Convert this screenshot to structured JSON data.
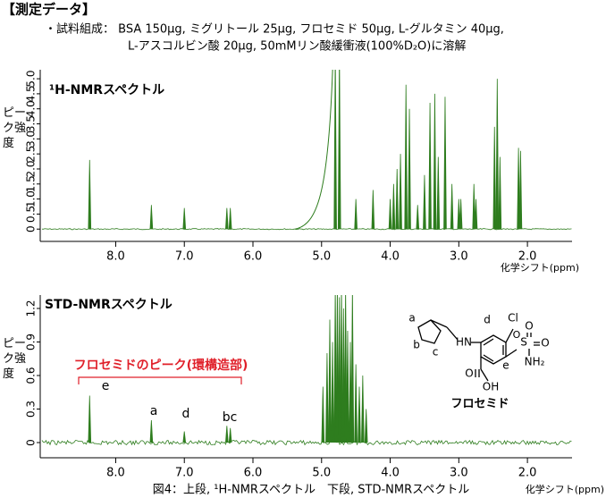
{
  "header": {
    "title": "【測定データ】",
    "lines": [
      "・試料組成： BSA 150μg, ミグリトール 25μg, フロセミド 50μg, L-グルタミン 40μg,",
      "L-アスコルビン酸 20μg,  50mMリン酸緩衝液(100%D₂O)に溶解"
    ]
  },
  "chart_data": [
    {
      "type": "spectrum",
      "title": "¹H-NMRスペクトル",
      "xlabel": "化学シフト(ppm)",
      "ylabel": "ピーク強度",
      "color": "#2e7d1e",
      "xlim": [
        9.1,
        1.35
      ],
      "ylim": [
        -0.35,
        5.3
      ],
      "xticks": [
        {
          "value": 8,
          "label": "8.0"
        },
        {
          "value": 7,
          "label": "7.0"
        },
        {
          "value": 6,
          "label": "6.0"
        },
        {
          "value": 5,
          "label": "5.0"
        },
        {
          "value": 4,
          "label": "4.0"
        },
        {
          "value": 3,
          "label": "3.0"
        },
        {
          "value": 2,
          "label": "2.0"
        }
      ],
      "yticks": [
        0,
        0.5,
        {
          "value": 1,
          "label": "1.0"
        },
        1.5,
        {
          "value": 2,
          "label": "2.0"
        },
        2.5,
        {
          "value": 3,
          "label": "3.0"
        },
        3.5,
        {
          "value": 4,
          "label": "4.0"
        },
        4.5,
        {
          "value": 5,
          "label": "5.0"
        }
      ],
      "x": [
        8.38,
        7.48,
        7.0,
        6.38,
        6.33,
        4.8,
        4.74,
        4.5,
        4.25,
        4.0,
        3.95,
        3.9,
        3.85,
        3.77,
        3.72,
        3.6,
        3.5,
        3.42,
        3.35,
        3.3,
        3.2,
        3.1,
        3.0,
        2.97,
        2.78,
        2.75,
        2.48,
        2.44,
        2.4,
        2.13,
        2.1
      ],
      "values": [
        2.3,
        0.8,
        0.7,
        0.7,
        0.7,
        6,
        6,
        1.0,
        1.3,
        1.0,
        1.5,
        2.0,
        2.5,
        4.8,
        4.0,
        0.8,
        1.8,
        4.2,
        4.5,
        2.4,
        4.4,
        1.5,
        1.0,
        1.0,
        1.5,
        1.0,
        3.4,
        5.0,
        2.4,
        2.7,
        2.6
      ]
    },
    {
      "type": "spectrum",
      "title": "STD-NMRスペクトル",
      "xlabel": "化学シフト(ppm)",
      "ylabel": "ピーク強度",
      "color": "#2e7d1e",
      "xlim": [
        9.1,
        1.35
      ],
      "ylim": [
        -0.12,
        1.32
      ],
      "xticks": [
        {
          "value": 8,
          "label": "8.0"
        },
        {
          "value": 7,
          "label": "7.0"
        },
        {
          "value": 6,
          "label": "6.0"
        },
        {
          "value": 5,
          "label": "5.0"
        },
        {
          "value": 4,
          "label": "4.0"
        },
        {
          "value": 3,
          "label": "3.0"
        },
        {
          "value": 2,
          "label": "2.0"
        }
      ],
      "yticks": [
        0,
        0.3,
        0.6,
        0.9,
        1.2
      ],
      "x": [
        8.38,
        7.48,
        7.0,
        6.38,
        6.33,
        4.98,
        4.92,
        4.88,
        4.84,
        4.8,
        4.77,
        4.74,
        4.71,
        4.68,
        4.65,
        4.62,
        4.58,
        4.55,
        4.5,
        4.45,
        4.4,
        4.35
      ],
      "values": [
        0.42,
        0.2,
        0.1,
        0.15,
        0.13,
        0.5,
        0.8,
        1.1,
        0.9,
        1.4,
        1.4,
        1.3,
        1.4,
        1.2,
        1.4,
        1.0,
        0.9,
        1.4,
        0.7,
        0.5,
        0.6,
        0.3
      ],
      "annotations": [
        "e",
        "a",
        "d",
        "bc"
      ],
      "highlight": "フロセミドのピーク(環構造部)"
    }
  ],
  "structure": {
    "name": "フロセミド",
    "labels": [
      "a",
      "b",
      "c",
      "d",
      "Cl",
      "HN",
      "S",
      "O",
      "O",
      "NH₂",
      "e",
      "O",
      "OH",
      "O"
    ]
  },
  "caption": "図4：上段, ¹H-NMRスペクトル　下段, STD-NMRスペクトル"
}
